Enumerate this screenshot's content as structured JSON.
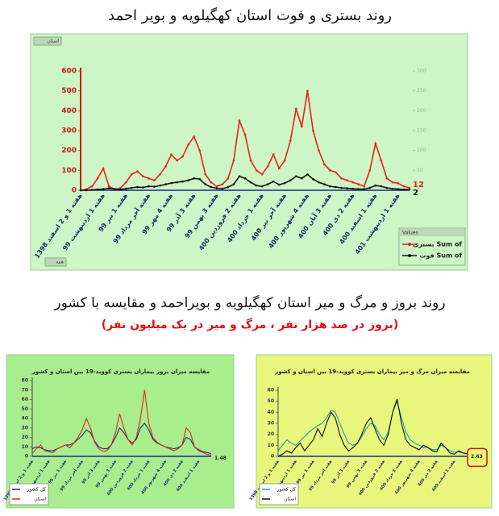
{
  "heading": "روند بروز و مرگ و میر استان کهگیلویه و بویراحمد و مقایسه با کشور",
  "subheading": "(بروز در صد هزار نفر ، مرگ و میر در یک میلیون نفر)",
  "chart_data": [
    {
      "type": "line",
      "title": "روند بستری و فوت استان کهگیلویه و بویر احمد",
      "filter_label": "استان",
      "page_filter": "همه",
      "legend_title": "Values",
      "legend": "bottom-right",
      "categories": [
        "هفته 1 و 2 اسفند 1398",
        null,
        null,
        null,
        "هفته 1 اردیبهشت 99",
        null,
        null,
        null,
        "هفته 1 تیر 99",
        null,
        null,
        null,
        "هفته آخر مرداد 99",
        null,
        null,
        null,
        "هفته 4 مهر 99",
        null,
        null,
        null,
        "هفته 3 آذر 99",
        null,
        null,
        null,
        "هفته 3 بهمن 99",
        null,
        null,
        null,
        "هفته 2 فروردین 400",
        null,
        null,
        null,
        "هفته 1 خرداد 400",
        null,
        null,
        null,
        "هفته آخر تیر 400",
        null,
        null,
        null,
        "هفته 4 شهریور 400",
        null,
        null,
        null,
        "هفته 3 آبان 400",
        null,
        null,
        null,
        "هفته 2 دی 400",
        null,
        null,
        null,
        "هفته 1 اسفند 400",
        null,
        null,
        null,
        "هفته 1 اردیبهشت 401",
        null,
        null
      ],
      "ylim": [
        0,
        600
      ],
      "yticks": [
        0,
        100,
        200,
        300,
        400,
        500,
        600
      ],
      "y2lim": [
        0,
        300
      ],
      "y2ticks": [
        0,
        50,
        100,
        150,
        200,
        250,
        300
      ],
      "series": [
        {
          "name": "بستری Sum of",
          "color": "#e8211b",
          "markers": true,
          "values": [
            0,
            5,
            20,
            60,
            110,
            20,
            5,
            10,
            40,
            80,
            95,
            70,
            60,
            50,
            80,
            120,
            180,
            150,
            170,
            230,
            270,
            200,
            80,
            40,
            20,
            30,
            60,
            150,
            350,
            280,
            150,
            100,
            80,
            120,
            180,
            110,
            150,
            250,
            410,
            320,
            500,
            300,
            200,
            130,
            100,
            90,
            60,
            50,
            40,
            30,
            20,
            100,
            235,
            150,
            60,
            40,
            35,
            20,
            12
          ],
          "value_labels": [
            null,
            null,
            null,
            null,
            null,
            null,
            null,
            null,
            null,
            null,
            null,
            null,
            null,
            null,
            null,
            null,
            null,
            null,
            null,
            null,
            null,
            null,
            null,
            null,
            null,
            null,
            null,
            null,
            null,
            null,
            null,
            null,
            null,
            null,
            null,
            null,
            null,
            null,
            null,
            null,
            null,
            null,
            null,
            null,
            null,
            null,
            null,
            null,
            null,
            null,
            null,
            null,
            null,
            null,
            null,
            null,
            null,
            null,
            "12"
          ]
        },
        {
          "name": "فوت Sum of",
          "color": "#111111",
          "axis": "y2",
          "markers": true,
          "values": [
            0,
            0,
            1,
            2,
            3,
            5,
            3,
            2,
            4,
            6,
            8,
            7,
            10,
            9,
            12,
            15,
            18,
            20,
            22,
            25,
            30,
            28,
            15,
            8,
            5,
            4,
            8,
            15,
            35,
            30,
            20,
            12,
            10,
            15,
            22,
            14,
            18,
            25,
            35,
            30,
            40,
            28,
            20,
            15,
            10,
            8,
            6,
            5,
            4,
            3,
            3,
            6,
            12,
            10,
            6,
            4,
            3,
            2,
            2
          ],
          "value_labels": [
            null,
            null,
            null,
            null,
            null,
            null,
            null,
            null,
            null,
            null,
            null,
            null,
            null,
            null,
            null,
            null,
            null,
            null,
            null,
            null,
            null,
            null,
            null,
            null,
            null,
            null,
            null,
            null,
            null,
            null,
            null,
            null,
            null,
            null,
            null,
            null,
            null,
            null,
            null,
            null,
            null,
            null,
            null,
            null,
            null,
            null,
            null,
            null,
            null,
            null,
            null,
            null,
            null,
            null,
            null,
            null,
            null,
            null,
            "2"
          ]
        }
      ]
    },
    {
      "type": "line",
      "title": "مقایسه میزان بروز بیماران بستری کووید-19 بین استان و کشور",
      "legend": "bottom-left",
      "categories": [
        "هفته 1 و 2 اسفند 1398",
        null,
        null,
        null,
        "هفته 1 اردیبهشت 99",
        null,
        null,
        null,
        "هفته 1 تیر 99",
        null,
        null,
        null,
        "هفته آخر مرداد 99",
        null,
        null,
        null,
        "هفته 3 آذر 99",
        null,
        null,
        null,
        "هفته 3 بهمن 99",
        null,
        null,
        null,
        "هفته 2 فروردین 400",
        null,
        null,
        null,
        "هفته 1 خرداد 400",
        null,
        null,
        null,
        "هفته 4 شهریور 400",
        null,
        null,
        null,
        "هفته 2 دی 400",
        null,
        null,
        null,
        "هفته 1 اسفند 400",
        null,
        null,
        null
      ],
      "ylim": [
        0,
        80
      ],
      "yticks": [
        0,
        10,
        20,
        30,
        40,
        50,
        60,
        70,
        80
      ],
      "series": [
        {
          "name": "کل کشور",
          "color": "#1c2a6b",
          "values": [
            8,
            10,
            9,
            7,
            6,
            6,
            8,
            10,
            12,
            12,
            14,
            18,
            22,
            28,
            25,
            16,
            10,
            8,
            8,
            12,
            20,
            30,
            25,
            18,
            14,
            18,
            30,
            35,
            28,
            18,
            14,
            12,
            10,
            9,
            8,
            9,
            12,
            20,
            18,
            10,
            7,
            5,
            4,
            3
          ]
        },
        {
          "name": "استان",
          "color": "#e8211b",
          "values": [
            3,
            8,
            12,
            6,
            5,
            4,
            8,
            10,
            12,
            9,
            14,
            20,
            28,
            40,
            30,
            15,
            8,
            5,
            6,
            12,
            25,
            45,
            30,
            18,
            12,
            20,
            40,
            70,
            35,
            20,
            15,
            12,
            10,
            8,
            6,
            8,
            12,
            30,
            25,
            10,
            6,
            4,
            2,
            1.48
          ],
          "value_labels": [
            null,
            null,
            null,
            null,
            null,
            null,
            null,
            null,
            null,
            null,
            null,
            null,
            null,
            null,
            null,
            null,
            null,
            null,
            null,
            null,
            null,
            null,
            null,
            null,
            null,
            null,
            null,
            null,
            null,
            null,
            null,
            null,
            null,
            null,
            null,
            null,
            null,
            null,
            null,
            null,
            null,
            null,
            null,
            "1.48"
          ]
        }
      ]
    },
    {
      "type": "line",
      "title": "مقایسه میزان مرگ و میر بیماران بستری کووید-19 بین استان و کشور",
      "legend": "bottom-left",
      "categories": [
        "هفته 1 و 2 اسفند 1398",
        null,
        null,
        null,
        "هفته 1 اردیبهشت 99",
        null,
        null,
        null,
        "هفته 1 تیر 99",
        null,
        null,
        null,
        "هفته آخر مرداد 99",
        null,
        null,
        null,
        "هفته 3 آذر 99",
        null,
        null,
        null,
        "هفته 3 بهمن 99",
        null,
        null,
        null,
        "هفته 2 فروردین 400",
        null,
        null,
        null,
        "هفته 1 خرداد 400",
        null,
        null,
        null,
        "هفته 4 شهریور 400",
        null,
        null,
        null,
        "هفته 2 دی 400",
        null,
        null,
        null,
        "هفته 1 اسفند 400",
        null,
        null,
        null
      ],
      "ylim": [
        0,
        60
      ],
      "yticks": [
        0,
        10,
        20,
        30,
        40,
        50,
        60
      ],
      "series": [
        {
          "name": "کل کشور",
          "color": "#1f9bb0",
          "values": [
            5,
            10,
            15,
            12,
            10,
            14,
            18,
            22,
            25,
            28,
            30,
            35,
            42,
            40,
            30,
            20,
            12,
            10,
            12,
            18,
            25,
            30,
            28,
            20,
            15,
            22,
            40,
            50,
            35,
            22,
            15,
            12,
            10,
            8,
            8,
            6,
            6,
            10,
            8,
            5,
            4,
            4,
            3,
            2
          ]
        },
        {
          "name": "استان",
          "color": "#111111",
          "values": [
            0,
            2,
            5,
            3,
            8,
            12,
            5,
            10,
            15,
            25,
            18,
            30,
            40,
            35,
            20,
            10,
            5,
            8,
            12,
            20,
            30,
            35,
            25,
            15,
            10,
            20,
            40,
            52,
            30,
            15,
            10,
            8,
            6,
            10,
            8,
            5,
            4,
            12,
            8,
            3,
            2,
            5,
            3,
            2.63
          ],
          "value_labels": [
            null,
            null,
            null,
            null,
            null,
            null,
            null,
            null,
            null,
            null,
            null,
            null,
            null,
            null,
            null,
            null,
            null,
            null,
            null,
            null,
            null,
            null,
            null,
            null,
            null,
            null,
            null,
            null,
            null,
            null,
            null,
            null,
            null,
            null,
            null,
            null,
            null,
            null,
            null,
            null,
            null,
            null,
            null,
            "2.63"
          ]
        }
      ]
    }
  ]
}
